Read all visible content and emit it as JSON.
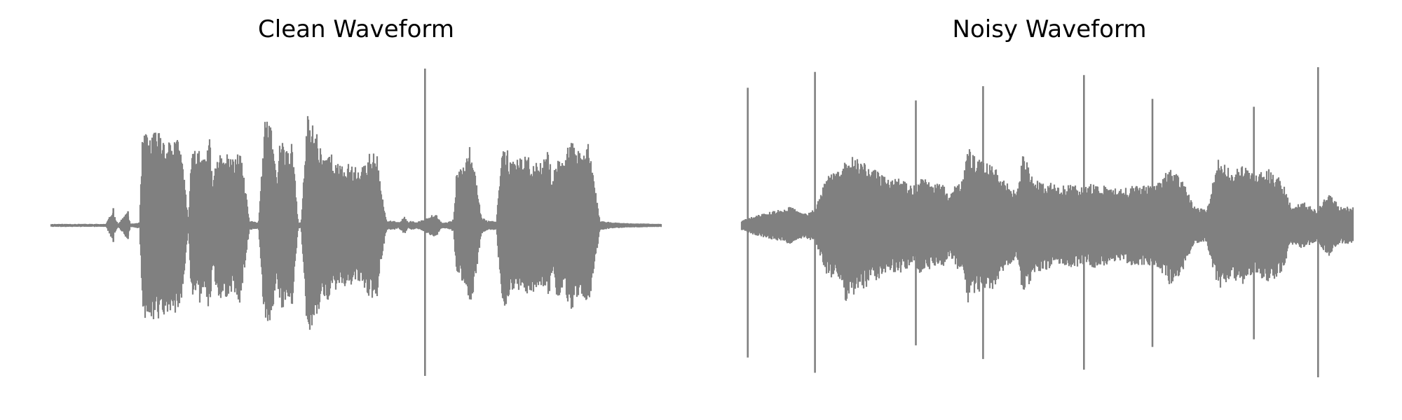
{
  "chart_data": [
    {
      "type": "line",
      "title": "Clean Waveform",
      "axis": "off",
      "grid": false,
      "series": [
        {
          "color": "#808080",
          "envelope": [
            [
              0.0,
              0.01
            ],
            [
              0.09,
              0.01
            ],
            [
              0.1,
              0.09
            ],
            [
              0.11,
              0.01
            ],
            [
              0.125,
              0.09
            ],
            [
              0.13,
              0.01
            ],
            [
              0.145,
              0.02
            ],
            [
              0.15,
              0.6
            ],
            [
              0.16,
              0.58
            ],
            [
              0.175,
              0.62
            ],
            [
              0.19,
              0.55
            ],
            [
              0.205,
              0.58
            ],
            [
              0.215,
              0.45
            ],
            [
              0.225,
              0.03
            ],
            [
              0.23,
              0.45
            ],
            [
              0.24,
              0.5
            ],
            [
              0.25,
              0.48
            ],
            [
              0.26,
              0.56
            ],
            [
              0.265,
              0.25
            ],
            [
              0.27,
              0.43
            ],
            [
              0.28,
              0.48
            ],
            [
              0.29,
              0.45
            ],
            [
              0.3,
              0.42
            ],
            [
              0.31,
              0.5
            ],
            [
              0.325,
              0.03
            ],
            [
              0.34,
              0.02
            ],
            [
              0.35,
              0.66
            ],
            [
              0.36,
              0.67
            ],
            [
              0.37,
              0.3
            ],
            [
              0.375,
              0.55
            ],
            [
              0.38,
              0.55
            ],
            [
              0.39,
              0.45
            ],
            [
              0.395,
              0.55
            ],
            [
              0.405,
              0.02
            ],
            [
              0.41,
              0.02
            ],
            [
              0.42,
              0.72
            ],
            [
              0.435,
              0.62
            ],
            [
              0.445,
              0.45
            ],
            [
              0.455,
              0.5
            ],
            [
              0.465,
              0.42
            ],
            [
              0.475,
              0.38
            ],
            [
              0.49,
              0.4
            ],
            [
              0.505,
              0.36
            ],
            [
              0.515,
              0.42
            ],
            [
              0.525,
              0.48
            ],
            [
              0.535,
              0.45
            ],
            [
              0.54,
              0.25
            ],
            [
              0.55,
              0.03
            ],
            [
              0.56,
              0.03
            ],
            [
              0.57,
              0.02
            ],
            [
              0.575,
              0.04
            ],
            [
              0.58,
              0.06
            ],
            [
              0.585,
              0.02
            ],
            [
              0.59,
              0.03
            ],
            [
              0.6,
              0.02
            ],
            [
              0.61,
              0.04
            ],
            [
              0.63,
              0.08
            ],
            [
              0.64,
              0.02
            ],
            [
              0.65,
              0.02
            ],
            [
              0.66,
              0.04
            ],
            [
              0.665,
              0.36
            ],
            [
              0.675,
              0.36
            ],
            [
              0.684,
              0.5
            ],
            [
              0.688,
              0.5
            ],
            [
              0.695,
              0.37
            ],
            [
              0.705,
              0.06
            ],
            [
              0.715,
              0.03
            ],
            [
              0.73,
              0.03
            ],
            [
              0.74,
              0.55
            ],
            [
              0.755,
              0.43
            ],
            [
              0.765,
              0.42
            ],
            [
              0.78,
              0.45
            ],
            [
              0.8,
              0.4
            ],
            [
              0.815,
              0.48
            ],
            [
              0.822,
              0.3
            ],
            [
              0.83,
              0.48
            ],
            [
              0.84,
              0.4
            ],
            [
              0.85,
              0.55
            ],
            [
              0.86,
              0.5
            ],
            [
              0.87,
              0.45
            ],
            [
              0.88,
              0.55
            ],
            [
              0.9,
              0.03
            ],
            [
              0.92,
              0.02
            ],
            [
              0.94,
              0.015
            ],
            [
              1.0,
              0.01
            ]
          ],
          "spikes": [
            [
              0.102,
              0.11
            ],
            [
              0.126,
              0.09
            ],
            [
              0.613,
              1.0
            ]
          ]
        }
      ]
    },
    {
      "type": "line",
      "title": "Noisy Waveform",
      "axis": "off",
      "grid": false,
      "series": [
        {
          "color": "#808080",
          "envelope": [
            [
              0.0,
              0.03
            ],
            [
              0.02,
              0.06
            ],
            [
              0.05,
              0.09
            ],
            [
              0.08,
              0.12
            ],
            [
              0.1,
              0.08
            ],
            [
              0.12,
              0.1
            ],
            [
              0.14,
              0.32
            ],
            [
              0.16,
              0.35
            ],
            [
              0.17,
              0.5
            ],
            [
              0.18,
              0.45
            ],
            [
              0.2,
              0.4
            ],
            [
              0.22,
              0.35
            ],
            [
              0.24,
              0.3
            ],
            [
              0.255,
              0.3
            ],
            [
              0.26,
              0.3
            ],
            [
              0.27,
              0.28
            ],
            [
              0.28,
              0.25
            ],
            [
              0.29,
              0.3
            ],
            [
              0.3,
              0.3
            ],
            [
              0.31,
              0.28
            ],
            [
              0.32,
              0.27
            ],
            [
              0.33,
              0.26
            ],
            [
              0.34,
              0.2
            ],
            [
              0.35,
              0.28
            ],
            [
              0.36,
              0.28
            ],
            [
              0.37,
              0.5
            ],
            [
              0.38,
              0.45
            ],
            [
              0.39,
              0.42
            ],
            [
              0.4,
              0.39
            ],
            [
              0.41,
              0.42
            ],
            [
              0.42,
              0.35
            ],
            [
              0.43,
              0.3
            ],
            [
              0.44,
              0.25
            ],
            [
              0.45,
              0.2
            ],
            [
              0.46,
              0.45
            ],
            [
              0.48,
              0.3
            ],
            [
              0.5,
              0.28
            ],
            [
              0.52,
              0.25
            ],
            [
              0.54,
              0.27
            ],
            [
              0.56,
              0.25
            ],
            [
              0.58,
              0.28
            ],
            [
              0.6,
              0.25
            ],
            [
              0.62,
              0.23
            ],
            [
              0.64,
              0.26
            ],
            [
              0.66,
              0.25
            ],
            [
              0.68,
              0.27
            ],
            [
              0.7,
              0.38
            ],
            [
              0.72,
              0.3
            ],
            [
              0.74,
              0.12
            ],
            [
              0.76,
              0.1
            ],
            [
              0.78,
              0.42
            ],
            [
              0.8,
              0.35
            ],
            [
              0.82,
              0.38
            ],
            [
              0.84,
              0.32
            ],
            [
              0.86,
              0.36
            ],
            [
              0.88,
              0.33
            ],
            [
              0.9,
              0.12
            ],
            [
              0.92,
              0.15
            ],
            [
              0.94,
              0.1
            ],
            [
              0.96,
              0.2
            ],
            [
              0.98,
              0.12
            ],
            [
              1.0,
              0.12
            ]
          ],
          "spikes": [
            [
              0.01,
              0.87
            ],
            [
              0.12,
              0.97
            ],
            [
              0.285,
              0.79
            ],
            [
              0.395,
              0.88
            ],
            [
              0.56,
              0.95
            ],
            [
              0.672,
              0.8
            ],
            [
              0.838,
              0.75
            ],
            [
              0.943,
              1.0
            ]
          ]
        }
      ]
    }
  ]
}
